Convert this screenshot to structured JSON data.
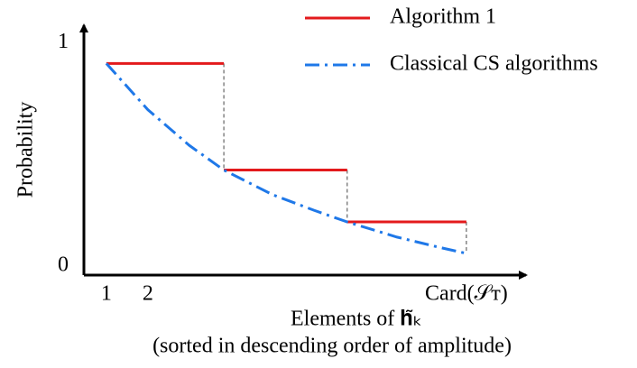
{
  "chart_data": {
    "type": "line",
    "ylabel": "Probability",
    "xlabel": [
      "Elements of 𝐡̃ₖ",
      "(sorted in descending order of amplitude)"
    ],
    "xlim": [
      0.46,
      11.15
    ],
    "ylim": [
      -0.04,
      1.09
    ],
    "xticks": [
      1,
      2,
      {
        "value": 9.67,
        "label": "Card(𝒮ᴛ)"
      }
    ],
    "yticks": [
      0,
      1
    ],
    "series": [
      {
        "name": "Algorithm 1",
        "color": "#e31a1c",
        "dash": "solid",
        "x": [
          1,
          3.83,
          3.83,
          3.83,
          6.8,
          6.8,
          6.8,
          9.67
        ],
        "values": [
          0.907,
          0.907,
          null,
          0.43,
          0.43,
          null,
          0.198,
          0.198
        ]
      },
      {
        "name": "Classical CS algorithms",
        "color": "#1f78e8",
        "dash": "dashdot",
        "x": [
          1,
          2,
          3,
          3.83,
          5,
          6,
          6.8,
          8,
          9,
          9.67
        ],
        "values": [
          0.907,
          0.7,
          0.54,
          0.43,
          0.32,
          0.25,
          0.198,
          0.13,
          0.085,
          0.057
        ]
      }
    ]
  }
}
